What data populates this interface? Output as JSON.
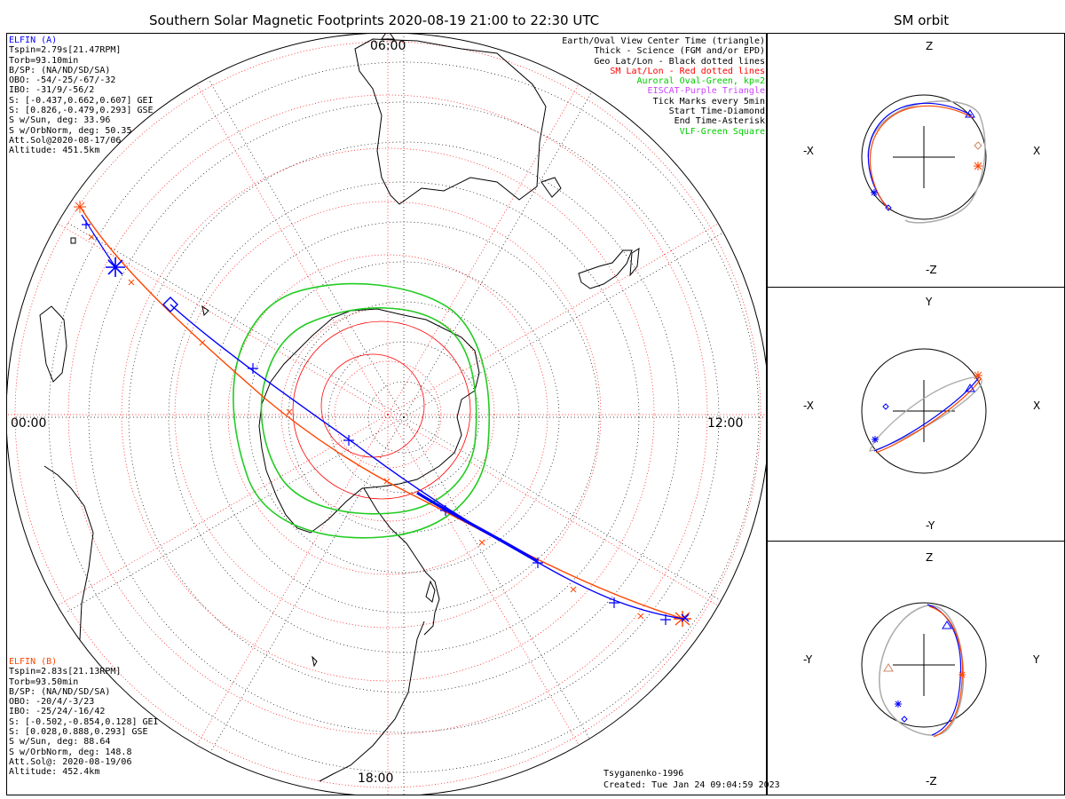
{
  "title": "Southern Solar Magnetic Footprints 2020-08-19 21:00 to 22:30 UTC",
  "orbit_title": "SM orbit",
  "main_map": {
    "mlt_labels": {
      "top": "06:00",
      "left": "00:00",
      "right": "12:00",
      "bottom": "18:00"
    },
    "model": "Tsyganenko-1996",
    "created": "Created: Tue Jan 24 09:04:59 2023"
  },
  "elfin_a": {
    "name": "ELFIN (A)",
    "color": "#0000ff",
    "lines": [
      "Tspin=2.79s[21.47RPM]",
      "Torb=93.10min",
      "B/SP: (NA/ND/SD/SA)",
      "OBO: -54/-25/-67/-32",
      "IBO: -31/9/-56/2",
      "S: [-0.437,0.662,0.607] GEI",
      "S: [0.826,-0.479,0.293] GSE",
      "S w/Sun, deg: 33.96",
      "S w/OrbNorm, deg: 50.35",
      "Att.Sol@2020-08-17/06",
      "Altitude: 451.5km"
    ]
  },
  "elfin_b": {
    "name": "ELFIN (B)",
    "color": "#ff4500",
    "lines": [
      "Tspin=2.83s[21.13RPM]",
      "Torb=93.50min",
      "B/SP: (NA/ND/SD/SA)",
      "OBO: -20/4/-3/23",
      "IBO: -25/24/-16/42",
      "S: [-0.502,-0.854,0.128] GEI",
      "S: [0.028,0.888,0.293] GSE",
      "S w/Sun, deg: 88.64",
      "S w/OrbNorm, deg: 148.8",
      "Att.Sol@: 2020-08-19/06",
      "Altitude: 452.4km"
    ]
  },
  "legend": [
    {
      "text": "Earth/Oval View Center Time (triangle)",
      "color": "#000000"
    },
    {
      "text": "Thick - Science (FGM and/or EPD)",
      "color": "#000000"
    },
    {
      "text": "Geo Lat/Lon - Black dotted lines",
      "color": "#000000"
    },
    {
      "text": "SM Lat/Lon - Red dotted lines",
      "color": "#ff0000"
    },
    {
      "text": "Auroral Oval-Green, kp=2",
      "color": "#00cc00"
    },
    {
      "text": "EISCAT-Purple Triangle",
      "color": "#cc44ff"
    },
    {
      "text": "Tick Marks every 5min",
      "color": "#000000"
    },
    {
      "text": "Start Time-Diamond",
      "color": "#000000"
    },
    {
      "text": "End Time-Asterisk",
      "color": "#000000"
    },
    {
      "text": "VLF-Green Square",
      "color": "#00cc00"
    }
  ],
  "orbit_panels": [
    {
      "top": "Z",
      "bottom": "-Z",
      "left": "-X",
      "right": "X"
    },
    {
      "top": "Y",
      "bottom": "-Y",
      "left": "-X",
      "right": "X"
    },
    {
      "top": "Z",
      "bottom": "-Z",
      "left": "-Y",
      "right": "Y"
    }
  ],
  "colors": {
    "sm_grid": "#ff0000",
    "oval": "#22cc22",
    "elfin_a": "#0000ff",
    "elfin_b": "#ff4500",
    "orbit_gray": "#aaaaaa"
  }
}
